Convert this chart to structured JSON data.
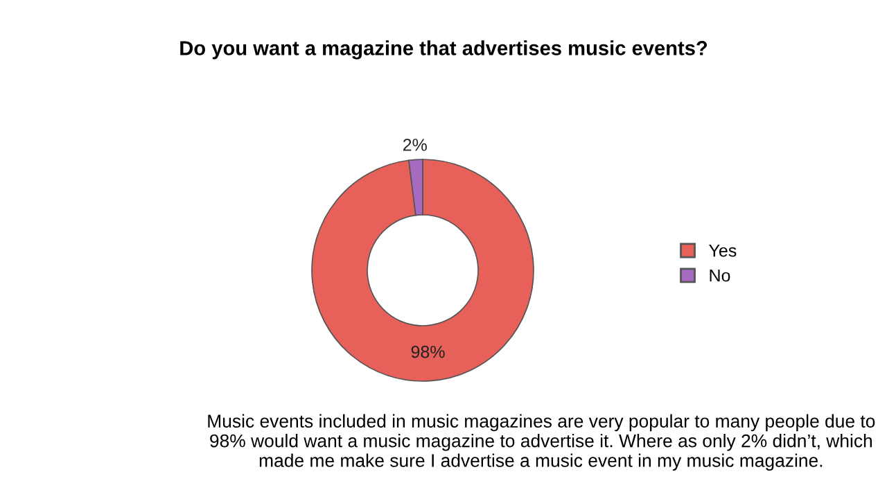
{
  "chart_data": {
    "type": "donut",
    "title": "Do you want a magazine that advertises music events?",
    "categories": [
      "Yes",
      "No"
    ],
    "values": [
      98,
      2
    ],
    "colors": [
      "#e8605a",
      "#a66bc0"
    ],
    "value_labels": [
      "98%",
      "2%"
    ],
    "legend": "right",
    "annotations": [
      "Music events included in music magazines are very popular to many people due to 98% would want a music magazine to advertise it. Where as only 2% didn’t, which made me make sure I advertise a music event in my music magazine."
    ]
  }
}
